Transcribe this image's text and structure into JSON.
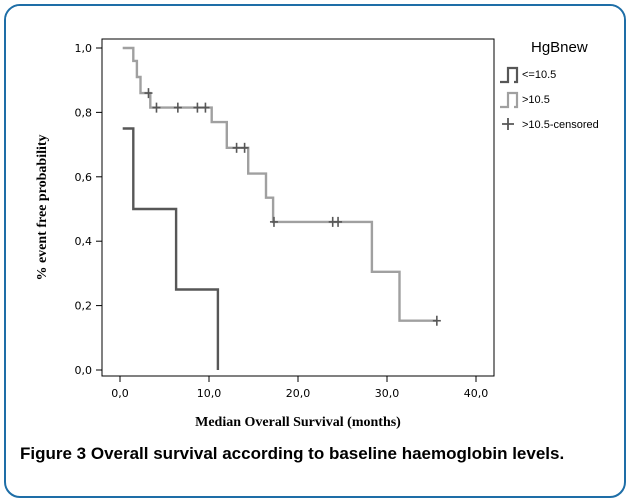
{
  "chart_data": {
    "type": "line",
    "xlabel": "Median Overall Survival (months)",
    "ylabel": "% event free probability",
    "xlim": [
      0,
      40
    ],
    "ylim": [
      0,
      1
    ],
    "xticks": [
      "0,0",
      "10,0",
      "20,0",
      "30,0",
      "40,0"
    ],
    "yticks": [
      "0,0",
      "0,2",
      "0,4",
      "0,6",
      "0,8",
      "1,0"
    ],
    "grid": false,
    "legend": {
      "title": "HgBnew",
      "placement": "right",
      "entries": [
        "<=10.5",
        ">10.5",
        ">10.5-censored"
      ]
    },
    "series": [
      {
        "name": "<=10.5",
        "color": "#575757",
        "x": [
          0.3,
          1.5,
          1.5,
          6.3,
          6.3,
          11.0,
          11.0
        ],
        "y": [
          0.75,
          0.75,
          0.5,
          0.5,
          0.25,
          0.25,
          0.0
        ]
      },
      {
        "name": ">10.5",
        "color": "#a0a0a0",
        "x": [
          0.3,
          1.5,
          1.5,
          1.9,
          1.9,
          2.3,
          2.3,
          3.4,
          3.4,
          10.3,
          10.3,
          12.0,
          12.0,
          14.4,
          14.4,
          16.4,
          16.4,
          17.2,
          17.2,
          28.3,
          28.3,
          31.4,
          31.4,
          35.6
        ],
        "y": [
          1.0,
          1.0,
          0.96,
          0.96,
          0.91,
          0.91,
          0.86,
          0.86,
          0.815,
          0.815,
          0.77,
          0.77,
          0.69,
          0.69,
          0.61,
          0.61,
          0.535,
          0.535,
          0.46,
          0.46,
          0.305,
          0.305,
          0.153,
          0.153
        ]
      },
      {
        "name": ">10.5-censored",
        "color": "#575757",
        "points": [
          [
            3.2,
            0.86
          ],
          [
            4.1,
            0.815
          ],
          [
            6.5,
            0.815
          ],
          [
            8.7,
            0.815
          ],
          [
            9.6,
            0.815
          ],
          [
            13.1,
            0.69
          ],
          [
            14.0,
            0.69
          ],
          [
            17.3,
            0.46
          ],
          [
            23.9,
            0.46
          ],
          [
            24.5,
            0.46
          ],
          [
            35.6,
            0.153
          ]
        ]
      }
    ]
  },
  "caption": {
    "label": "Figure 3",
    "text": "Overall survival according to baseline haemoglobin levels."
  }
}
